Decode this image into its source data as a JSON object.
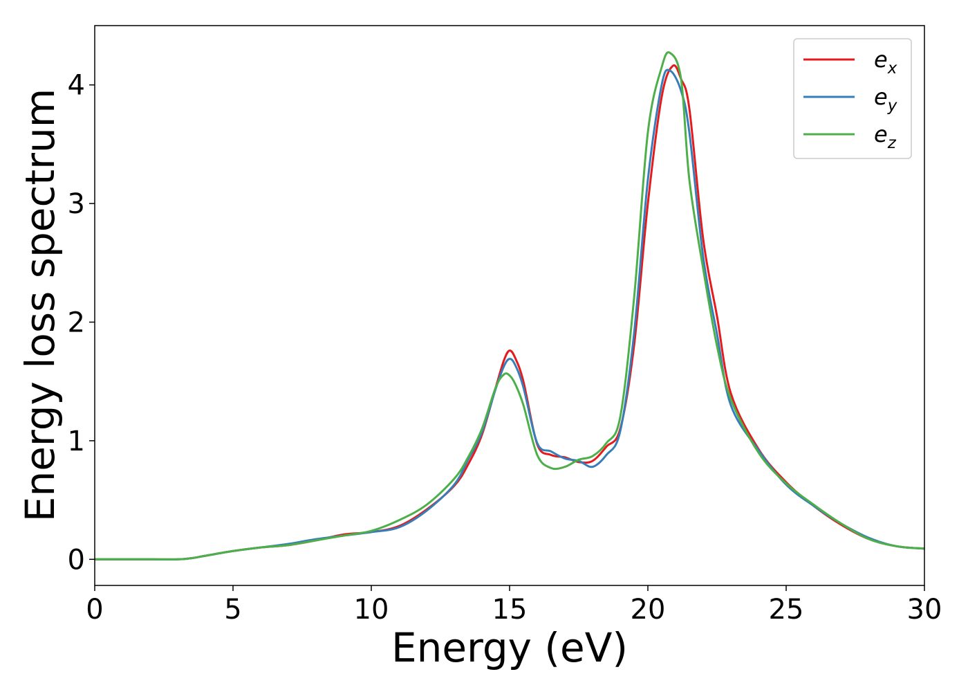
{
  "chart_data": {
    "type": "line",
    "xlabel": "Energy (eV)",
    "ylabel": "Energy loss spectrum",
    "xlim": [
      0,
      30
    ],
    "ylim": [
      -0.22,
      4.5
    ],
    "xticks": [
      0,
      5,
      10,
      15,
      20,
      25,
      30
    ],
    "xtick_labels": [
      "0",
      "5",
      "10",
      "15",
      "20",
      "25",
      "30"
    ],
    "yticks": [
      0,
      1,
      2,
      3,
      4
    ],
    "ytick_labels": [
      "0",
      "1",
      "2",
      "3",
      "4"
    ],
    "grid": false,
    "legend_position": "top-right",
    "series": [
      {
        "name": "e",
        "subscript": "x",
        "color": "#e41a1c",
        "x": [
          0,
          2,
          3,
          3.5,
          4,
          5,
          6,
          7,
          8,
          9,
          10,
          11,
          12,
          13,
          13.5,
          14,
          14.5,
          14.8,
          15,
          15.2,
          15.5,
          16,
          16.5,
          17,
          17.5,
          18,
          18.5,
          19,
          19.5,
          20,
          20.5,
          20.9,
          21.2,
          21.5,
          22,
          22.5,
          23,
          24,
          25,
          26,
          27,
          28,
          29,
          30
        ],
        "y": [
          0,
          0,
          0,
          0.01,
          0.03,
          0.07,
          0.1,
          0.12,
          0.16,
          0.21,
          0.23,
          0.28,
          0.42,
          0.62,
          0.8,
          1.05,
          1.45,
          1.68,
          1.76,
          1.7,
          1.5,
          0.97,
          0.88,
          0.86,
          0.82,
          0.83,
          0.95,
          1.1,
          1.8,
          3.0,
          3.9,
          4.16,
          4.05,
          3.8,
          2.7,
          2.05,
          1.4,
          0.93,
          0.65,
          0.45,
          0.29,
          0.17,
          0.11,
          0.09
        ]
      },
      {
        "name": "e",
        "subscript": "y",
        "color": "#377eb8",
        "x": [
          0,
          2,
          3,
          3.5,
          4,
          5,
          6,
          7,
          8,
          9,
          10,
          11,
          12,
          13,
          13.5,
          14,
          14.5,
          14.8,
          15,
          15.2,
          15.5,
          16,
          16.5,
          17,
          17.5,
          18,
          18.5,
          19,
          19.5,
          20,
          20.5,
          20.8,
          21.2,
          21.5,
          22,
          22.5,
          23,
          24,
          25,
          26,
          27,
          28,
          29,
          30
        ],
        "y": [
          0,
          0,
          0,
          0.01,
          0.03,
          0.07,
          0.1,
          0.13,
          0.17,
          0.2,
          0.23,
          0.27,
          0.41,
          0.63,
          0.84,
          1.07,
          1.44,
          1.63,
          1.69,
          1.64,
          1.45,
          0.98,
          0.91,
          0.85,
          0.83,
          0.78,
          0.88,
          1.08,
          1.9,
          3.2,
          4.0,
          4.12,
          3.95,
          3.6,
          2.55,
          1.9,
          1.3,
          0.92,
          0.63,
          0.45,
          0.3,
          0.18,
          0.11,
          0.09
        ]
      },
      {
        "name": "e",
        "subscript": "z",
        "color": "#4daf4a",
        "x": [
          0,
          2,
          3,
          3.5,
          4,
          5,
          6,
          7,
          8,
          9,
          10,
          11,
          12,
          13,
          13.5,
          14,
          14.5,
          14.8,
          15,
          15.2,
          15.5,
          16,
          16.5,
          17,
          17.5,
          18,
          18.5,
          19,
          19.5,
          20,
          20.5,
          20.8,
          21.2,
          21.5,
          22,
          22.5,
          23,
          24,
          25,
          26,
          27,
          28,
          29,
          30
        ],
        "y": [
          0,
          0,
          0,
          0.01,
          0.03,
          0.07,
          0.1,
          0.12,
          0.16,
          0.2,
          0.24,
          0.33,
          0.46,
          0.68,
          0.86,
          1.1,
          1.45,
          1.56,
          1.55,
          1.48,
          1.3,
          0.88,
          0.77,
          0.78,
          0.84,
          0.87,
          0.98,
          1.2,
          2.2,
          3.6,
          4.15,
          4.27,
          4.05,
          3.2,
          2.45,
          1.8,
          1.35,
          0.9,
          0.64,
          0.46,
          0.3,
          0.17,
          0.11,
          0.09
        ]
      }
    ]
  }
}
